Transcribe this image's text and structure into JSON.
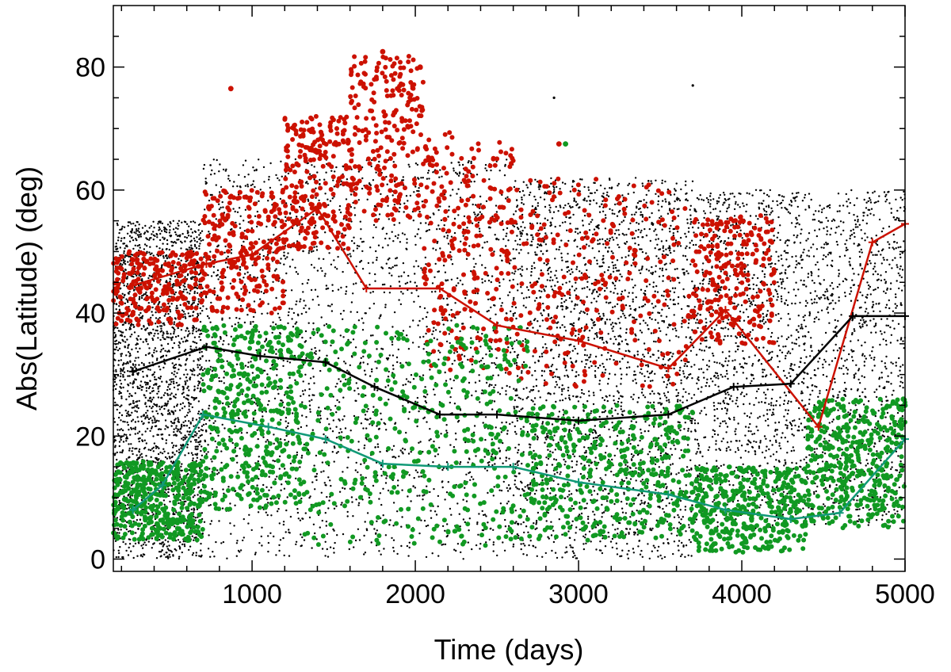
{
  "chart_data": {
    "type": "scatter",
    "title": "",
    "xlabel": "Time (days)",
    "ylabel": "Abs(Latitude) (deg)",
    "xlim": [
      150,
      5000
    ],
    "ylim": [
      -2,
      90
    ],
    "xticks": [
      1000,
      2000,
      3000,
      4000,
      5000
    ],
    "yticks": [
      0,
      20,
      40,
      60,
      80
    ],
    "grid": false,
    "legend": "none",
    "series": [
      {
        "kind": "scatter",
        "color": "#000000",
        "marker_radius": 1.2,
        "count": 9000,
        "distribution": [
          {
            "x": [
              150,
              700
            ],
            "y": [
              0,
              55
            ]
          },
          {
            "x": [
              700,
              2600
            ],
            "y": [
              0,
              65
            ]
          },
          {
            "x": [
              2600,
              3700
            ],
            "y": [
              0,
              62
            ]
          },
          {
            "x": [
              3700,
              5000
            ],
            "y": [
              5,
              60
            ]
          }
        ],
        "points": [
          [
            270,
            30
          ],
          [
            700,
            34.5
          ],
          [
            1450,
            32
          ],
          [
            2150,
            23.5
          ],
          [
            3500,
            22
          ],
          [
            4300,
            28.5
          ],
          [
            4680,
            39.5
          ],
          [
            1600,
            75
          ],
          [
            2850,
            75
          ],
          [
            3700,
            77
          ]
        ]
      },
      {
        "kind": "scatter",
        "color": "#cc1100",
        "marker_radius": 3,
        "count": 1600,
        "distribution": [
          {
            "x": [
              150,
              700
            ],
            "y": [
              38,
              50
            ]
          },
          {
            "x": [
              700,
              1200
            ],
            "y": [
              40,
              60
            ]
          },
          {
            "x": [
              1200,
              1600
            ],
            "y": [
              50,
              72
            ]
          },
          {
            "x": [
              1600,
              2050
            ],
            "y": [
              55,
              82
            ]
          },
          {
            "x": [
              2050,
              2600
            ],
            "y": [
              30,
              70
            ]
          },
          {
            "x": [
              2600,
              3700
            ],
            "y": [
              28,
              62
            ]
          },
          {
            "x": [
              3700,
              4200
            ],
            "y": [
              35,
              56
            ]
          }
        ],
        "points": [
          [
            870,
            76.5
          ],
          [
            1800,
            82.5
          ],
          [
            2030,
            80
          ],
          [
            2880,
            67.5
          ]
        ]
      },
      {
        "kind": "scatter",
        "color": "#119922",
        "marker_radius": 3,
        "count": 2400,
        "distribution": [
          {
            "x": [
              150,
              700
            ],
            "y": [
              3,
              16
            ]
          },
          {
            "x": [
              700,
              1300
            ],
            "y": [
              8,
              38
            ]
          },
          {
            "x": [
              1300,
              2700
            ],
            "y": [
              2,
              38
            ]
          },
          {
            "x": [
              2700,
              3700
            ],
            "y": [
              3,
              25
            ]
          },
          {
            "x": [
              3700,
              4400
            ],
            "y": [
              1,
              15
            ]
          },
          {
            "x": [
              4400,
              5000
            ],
            "y": [
              5,
              26
            ]
          }
        ],
        "points": [
          [
            2920,
            67.5
          ],
          [
            4990,
            26
          ],
          [
            5000,
            25
          ]
        ]
      },
      {
        "kind": "line",
        "name": "",
        "color": "#cc1100",
        "x": [
          270,
          720,
          1000,
          1400,
          1700,
          2150,
          2500,
          3000,
          3550,
          3900,
          4470,
          4800,
          5000
        ],
        "y": [
          44.5,
          48,
          49.5,
          57,
          44,
          44,
          38,
          35.5,
          31,
          40.5,
          21.5,
          51.5,
          54.5
        ]
      },
      {
        "kind": "line",
        "name": "",
        "color": "#000000",
        "x": [
          270,
          720,
          1050,
          1450,
          1750,
          2150,
          2500,
          3000,
          3550,
          3950,
          4300,
          4680,
          5000
        ],
        "y": [
          30.5,
          34.5,
          33,
          32,
          28,
          23.5,
          23.5,
          22.5,
          23.5,
          28,
          28.5,
          39.5,
          39.5
        ]
      },
      {
        "kind": "line",
        "name": "",
        "color": "#119977",
        "x": [
          270,
          450,
          700,
          1100,
          1450,
          1800,
          2200,
          2600,
          3000,
          3550,
          3900,
          4300,
          4600,
          5000
        ],
        "y": [
          8,
          12,
          23.5,
          21.5,
          19.5,
          15.5,
          15,
          15,
          12.5,
          10.5,
          8,
          6.5,
          7.5,
          19.5
        ]
      }
    ]
  }
}
